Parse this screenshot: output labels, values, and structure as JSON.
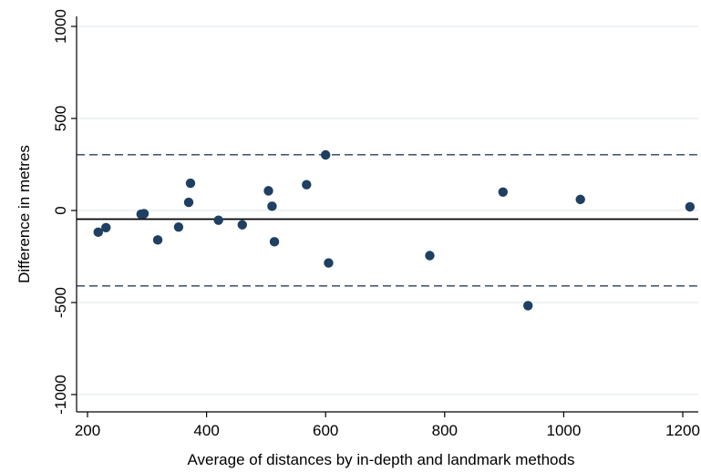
{
  "chart_data": {
    "type": "scatter",
    "title": "",
    "xlabel": "Average of distances by in-depth and landmark methods",
    "ylabel": "Difference in metres",
    "xlim": [
      200,
      1220
    ],
    "ylim": [
      -1050,
      1050
    ],
    "x_ticks": [
      200,
      400,
      600,
      800,
      1000,
      1200
    ],
    "x_tick_labels": [
      "200",
      "400",
      "600",
      "800",
      "1000",
      "1200"
    ],
    "y_ticks": [
      -1000,
      -500,
      0,
      500,
      1000
    ],
    "y_tick_labels": [
      "-1000",
      "-500",
      "0",
      "500",
      "1000"
    ],
    "grid": "horizontal",
    "legend": "none",
    "mean_difference": -47,
    "limits_of_agreement": [
      -410,
      303
    ],
    "colors": {
      "points": "#1f3f63",
      "mean_line": "#000000",
      "limit_lines": "#2b3d5f",
      "grid": "#dde6ea"
    },
    "points": [
      {
        "x": 218,
        "y": -118
      },
      {
        "x": 231,
        "y": -93
      },
      {
        "x": 290,
        "y": -20
      },
      {
        "x": 295,
        "y": -17
      },
      {
        "x": 318,
        "y": -160
      },
      {
        "x": 353,
        "y": -90
      },
      {
        "x": 370,
        "y": 44
      },
      {
        "x": 373,
        "y": 148
      },
      {
        "x": 420,
        "y": -53
      },
      {
        "x": 460,
        "y": -78
      },
      {
        "x": 504,
        "y": 107
      },
      {
        "x": 510,
        "y": 23
      },
      {
        "x": 514,
        "y": -170
      },
      {
        "x": 568,
        "y": 140
      },
      {
        "x": 600,
        "y": 302
      },
      {
        "x": 605,
        "y": -285
      },
      {
        "x": 775,
        "y": -245
      },
      {
        "x": 898,
        "y": 100
      },
      {
        "x": 940,
        "y": -517
      },
      {
        "x": 1028,
        "y": 60
      },
      {
        "x": 1212,
        "y": 20
      }
    ]
  }
}
